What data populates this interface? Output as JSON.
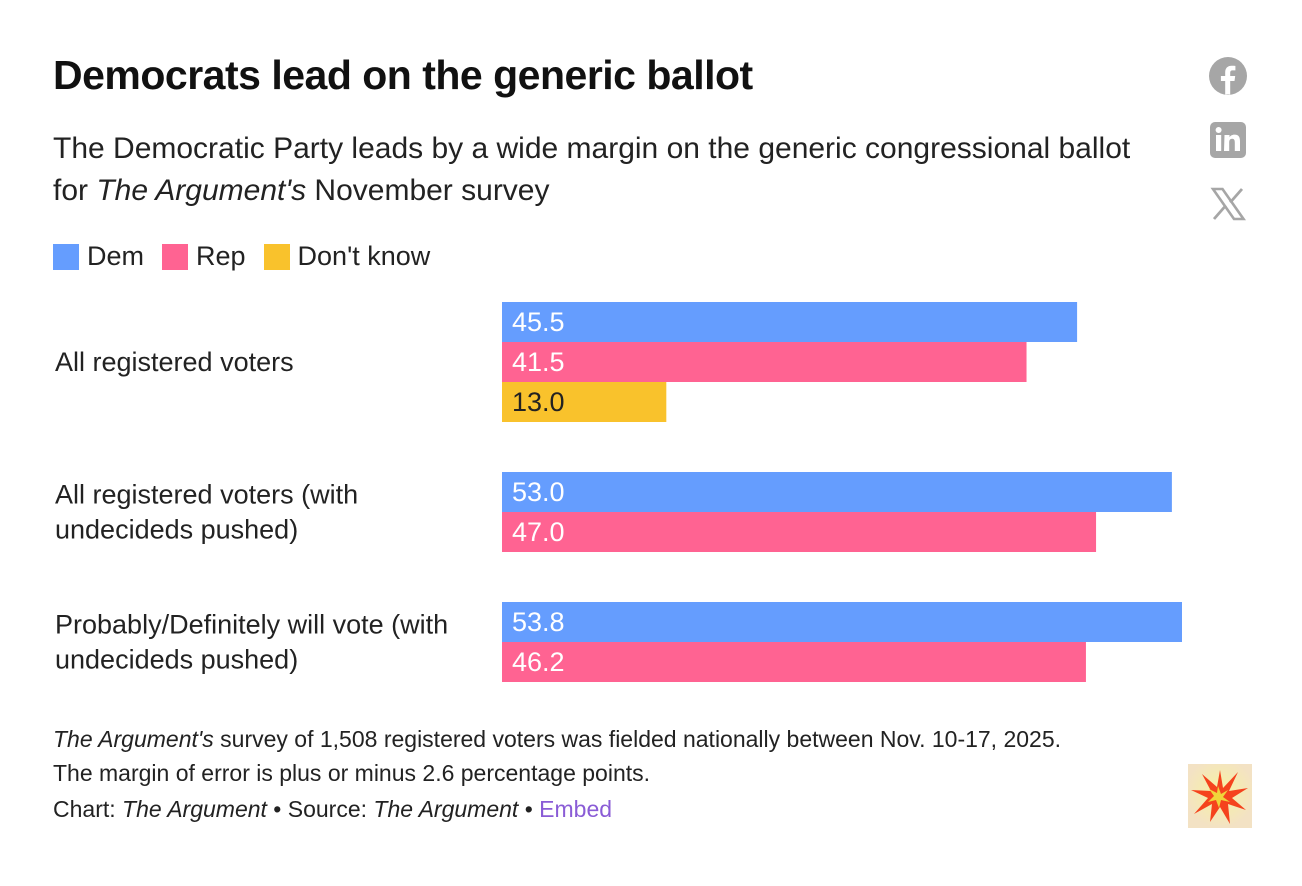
{
  "header": {
    "title": "Democrats lead on the generic ballot",
    "subtitle_part1": "The Democratic Party leads by a wide margin on the generic congressional ballot for ",
    "subtitle_italic": "The Argument's",
    "subtitle_part2": " November survey"
  },
  "share": {
    "facebook_icon": "facebook-icon",
    "linkedin_icon": "linkedin-icon",
    "x_icon": "x-icon"
  },
  "colors": {
    "dem": "#659dfe",
    "rep": "#ff6392",
    "dont_know": "#f9c22c",
    "icon_gray": "#a6a6a6",
    "embed": "#8a5cd6"
  },
  "chart_data": {
    "type": "bar",
    "orientation": "horizontal",
    "title": "Democrats lead on the generic ballot",
    "xlim": [
      0,
      55
    ],
    "legend_position": "top-left",
    "legend": [
      "Dem",
      "Rep",
      "Don't know"
    ],
    "categories": [
      {
        "label_lines": [
          "All registered voters"
        ]
      },
      {
        "label_lines": [
          "All registered voters (with",
          "undecideds pushed)"
        ]
      },
      {
        "label_lines": [
          "Probably/Definitely will vote (with",
          "undecideds pushed)"
        ]
      }
    ],
    "series": [
      {
        "name": "Dem",
        "values": [
          45.5,
          53.0,
          53.8
        ],
        "labels": [
          "45.5",
          "53.0",
          "53.8"
        ]
      },
      {
        "name": "Rep",
        "values": [
          41.5,
          47.0,
          46.2
        ],
        "labels": [
          "41.5",
          "47.0",
          "46.2"
        ]
      },
      {
        "name": "Don't know",
        "values": [
          13.0,
          null,
          null
        ],
        "labels": [
          "13.0",
          null,
          null
        ]
      }
    ]
  },
  "notes": {
    "line1_italic": "The Argument's",
    "line1_rest": " survey of 1,508 registered voters was fielded nationally between Nov. 10-17, 2025.",
    "line2": "The margin of error is plus or minus 2.6 percentage points."
  },
  "credit": {
    "chart_prefix": "Chart: ",
    "chart_name": "The Argument",
    "sep1": " • Source: ",
    "source_name": "The Argument",
    "sep2": " • ",
    "embed_label": "Embed"
  },
  "logo": {
    "icon": "the-argument-logo-icon"
  }
}
